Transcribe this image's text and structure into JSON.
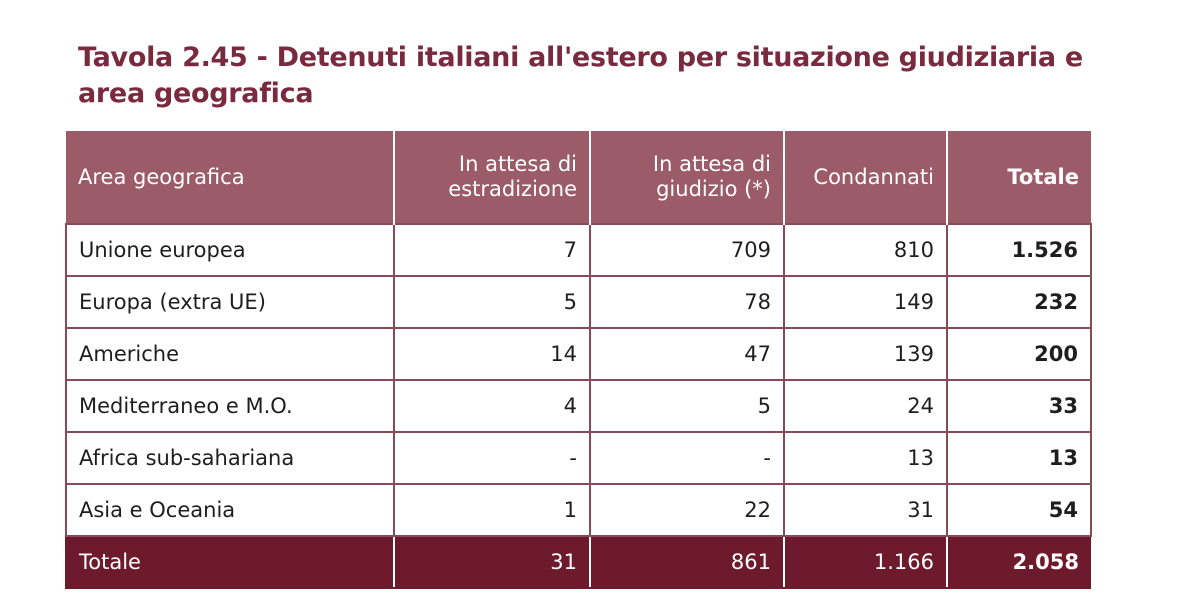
{
  "title": "Tavola 2.45 - Detenuti italiani all'estero per situazione giudiziaria e area geografica",
  "table": {
    "headers": {
      "area": "Area geografica",
      "estradizione_line1": "In attesa di",
      "estradizione_line2": "estradizione",
      "giudizio_line1": "In attesa di",
      "giudizio_line2": "giudizio (*)",
      "condannati": "Condannati",
      "totale": "Totale"
    },
    "rows": [
      {
        "area": "Unione europea",
        "estradizione": "7",
        "giudizio": "709",
        "condannati": "810",
        "totale": "1.526"
      },
      {
        "area": "Europa (extra UE)",
        "estradizione": "5",
        "giudizio": "78",
        "condannati": "149",
        "totale": "232"
      },
      {
        "area": "Americhe",
        "estradizione": "14",
        "giudizio": "47",
        "condannati": "139",
        "totale": "200"
      },
      {
        "area": "Mediterraneo e M.O.",
        "estradizione": "4",
        "giudizio": "5",
        "condannati": "24",
        "totale": "33"
      },
      {
        "area": "Africa sub-sahariana",
        "estradizione": "-",
        "giudizio": "-",
        "condannati": "13",
        "totale": "13"
      },
      {
        "area": "Asia e Oceania",
        "estradizione": "1",
        "giudizio": "22",
        "condannati": "31",
        "totale": "54"
      }
    ],
    "footer": {
      "area": "Totale",
      "estradizione": "31",
      "giudizio": "861",
      "condannati": "1.166",
      "totale": "2.058"
    }
  },
  "colors": {
    "title": "#7a2a3f",
    "header_bg": "#9c5b69",
    "footer_bg": "#6e1a2d",
    "border": "#8b4a5a"
  }
}
